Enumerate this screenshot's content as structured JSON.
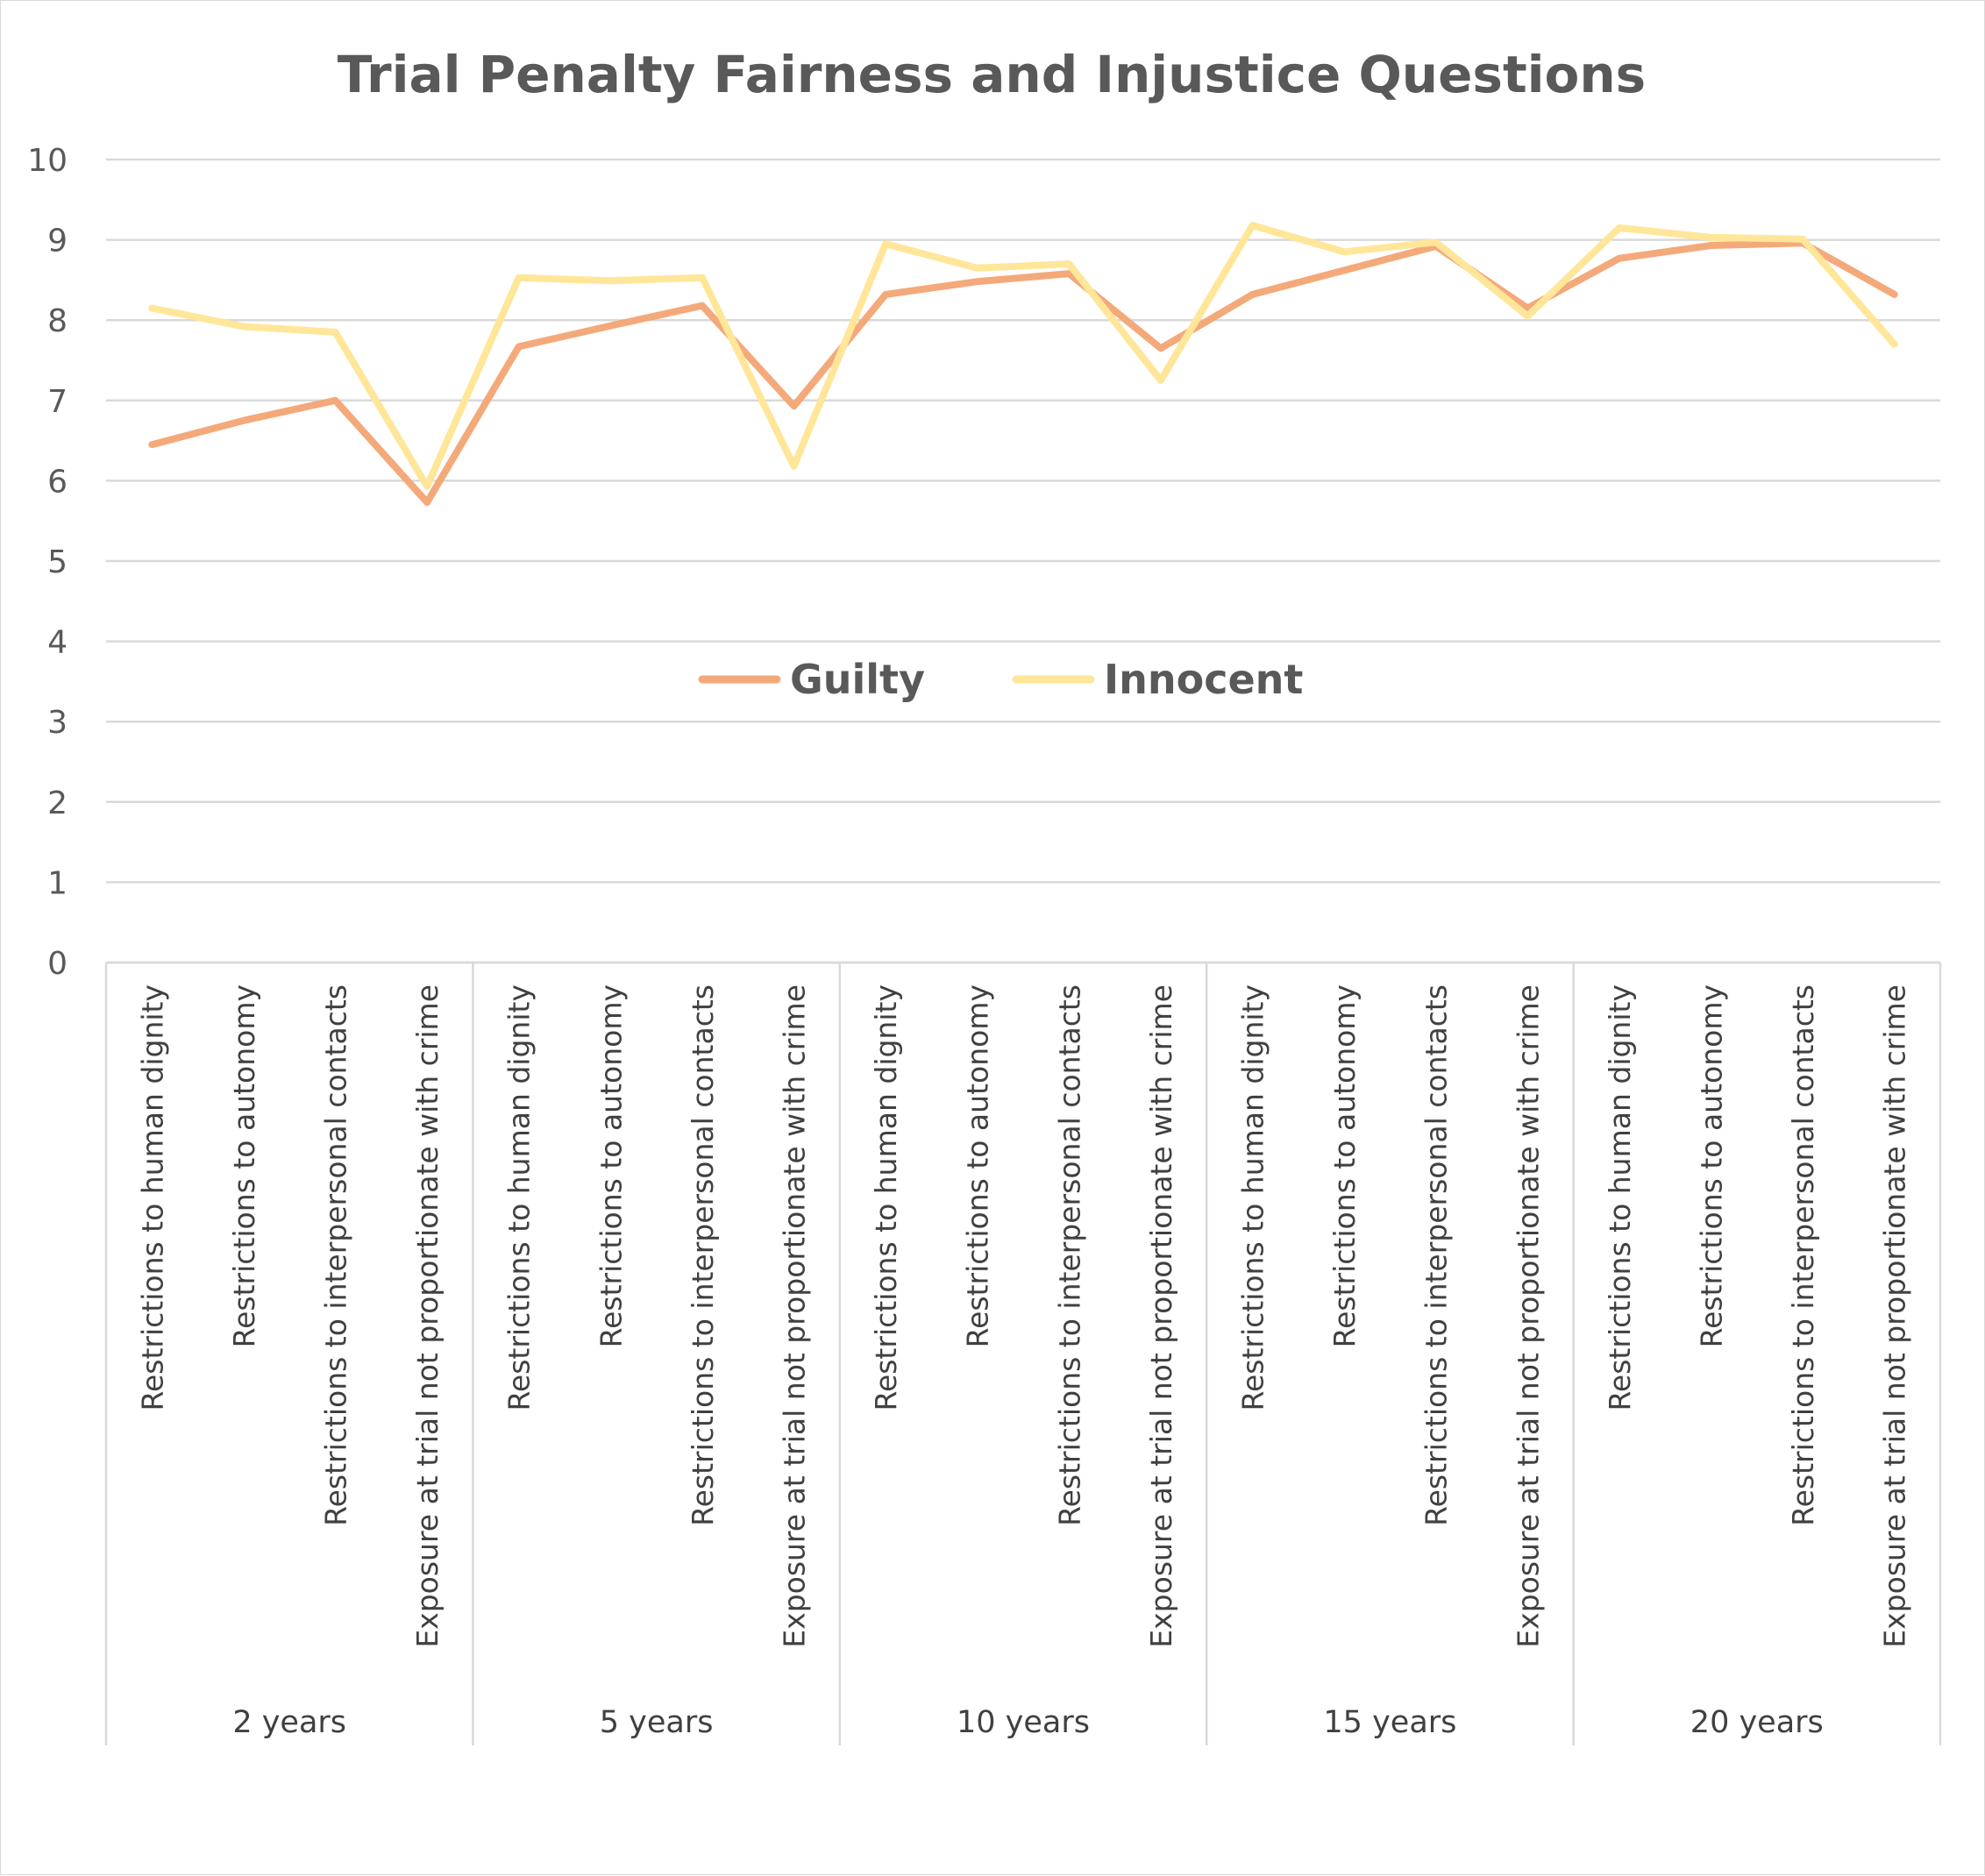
{
  "chart_data": {
    "type": "line",
    "title": "Trial Penalty Fairness and Injustice Questions",
    "xlabel": "",
    "ylabel": "",
    "ylim": [
      0,
      10
    ],
    "yticks": [
      0,
      1,
      2,
      3,
      4,
      5,
      6,
      7,
      8,
      9,
      10
    ],
    "grid": true,
    "legend_position": "center",
    "groups": [
      "2 years",
      "5 years",
      "10 years",
      "15 years",
      "20 years"
    ],
    "categories": [
      "Restrictions to human dignity",
      "Restrictions to autonomy",
      "Restrictions to interpersonal contacts",
      "Exposure at trial not proportionate with crime",
      "Restrictions to human dignity",
      "Restrictions to autonomy",
      "Restrictions to interpersonal contacts",
      "Exposure at trial not proportionate with crime",
      "Restrictions to human dignity",
      "Restrictions to autonomy",
      "Restrictions to interpersonal contacts",
      "Exposure at trial not proportionate with crime",
      "Restrictions to human dignity",
      "Restrictions to autonomy",
      "Restrictions to interpersonal contacts",
      "Exposure at trial not proportionate with crime",
      "Restrictions to human dignity",
      "Restrictions to autonomy",
      "Restrictions to interpersonal contacts",
      "Exposure at trial not proportionate with crime"
    ],
    "series": [
      {
        "name": "Guilty",
        "color": "#F4A97A",
        "values": [
          6.45,
          6.75,
          7.0,
          5.73,
          7.67,
          7.93,
          8.18,
          6.93,
          8.32,
          8.48,
          8.58,
          7.65,
          8.32,
          8.62,
          8.92,
          8.15,
          8.77,
          8.93,
          8.96,
          8.32
        ]
      },
      {
        "name": "Innocent",
        "color": "#FFE699",
        "values": [
          8.15,
          7.92,
          7.85,
          5.93,
          8.53,
          8.49,
          8.53,
          6.18,
          8.95,
          8.65,
          8.7,
          7.25,
          9.18,
          8.85,
          8.97,
          8.05,
          9.15,
          9.03,
          9.01,
          7.7
        ]
      }
    ]
  }
}
